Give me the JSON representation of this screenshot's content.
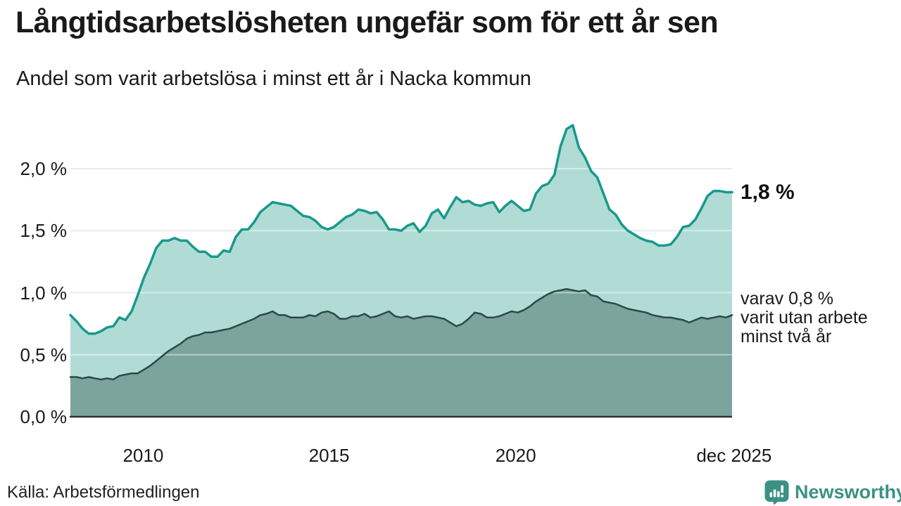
{
  "header": {
    "title": "Långtidsarbetslösheten ungefär som för ett år sen",
    "subtitle": "Andel som varit arbetslösa i minst ett år i Nacka kommun"
  },
  "annotations": {
    "latest_total": "1,8 %",
    "secondary": "varav 0,8 %\nvarit utan arbete\nminst två år"
  },
  "footer": {
    "source": "Källa: Arbetsförmedlingen",
    "brand": "Newsworthy"
  },
  "colors": {
    "accent_teal": "#18998b",
    "upper_fill": "#b1dcd6",
    "lower_fill": "#7aa49c",
    "lower_line": "#2b4a45",
    "gridline": "#d9d9d9",
    "gridline_overlay": "rgba(255,255,255,0.45)",
    "axis_line": "#303030",
    "text": "#1a1a1a",
    "brand_teal": "#3b9186"
  },
  "chart_data": {
    "type": "area",
    "title": "Långtidsarbetslösheten ungefär som för ett år sen",
    "subtitle": "Andel som varit arbetslösa i minst ett år i Nacka kommun",
    "xlabel": "",
    "ylabel": "",
    "grid": true,
    "legend_position": "right-edge-annotations",
    "x_range": [
      "2008",
      "dec 2025"
    ],
    "ylim": [
      0,
      2.4
    ],
    "y_ticks": {
      "labels": [
        "0,0 %",
        "0,5 %",
        "1,0 %",
        "1,5 %",
        "2,0 %"
      ],
      "values": [
        0,
        0.5,
        1.0,
        1.5,
        2.0
      ]
    },
    "x_ticks": {
      "labels": [
        "2010",
        "2015",
        "2020",
        "dec 2025"
      ],
      "fracs": [
        0.11,
        0.391,
        0.673,
        1.003
      ]
    },
    "series": [
      {
        "name": "Andel som varit arbetslösa i minst ett år",
        "end_label": "1,8 %",
        "end_value": 1.8,
        "values": [
          0.82,
          0.77,
          0.71,
          0.67,
          0.67,
          0.69,
          0.72,
          0.73,
          0.8,
          0.78,
          0.85,
          0.98,
          1.12,
          1.23,
          1.36,
          1.42,
          1.42,
          1.44,
          1.42,
          1.42,
          1.37,
          1.33,
          1.33,
          1.29,
          1.29,
          1.34,
          1.33,
          1.45,
          1.51,
          1.51,
          1.57,
          1.65,
          1.69,
          1.73,
          1.72,
          1.71,
          1.7,
          1.66,
          1.62,
          1.61,
          1.58,
          1.53,
          1.51,
          1.53,
          1.57,
          1.61,
          1.63,
          1.67,
          1.66,
          1.64,
          1.65,
          1.59,
          1.51,
          1.51,
          1.5,
          1.54,
          1.56,
          1.49,
          1.54,
          1.64,
          1.67,
          1.6,
          1.69,
          1.77,
          1.73,
          1.74,
          1.71,
          1.7,
          1.72,
          1.73,
          1.65,
          1.7,
          1.74,
          1.7,
          1.66,
          1.67,
          1.8,
          1.86,
          1.88,
          1.95,
          2.18,
          2.32,
          2.35,
          2.17,
          2.09,
          1.98,
          1.93,
          1.8,
          1.67,
          1.63,
          1.55,
          1.5,
          1.47,
          1.44,
          1.42,
          1.41,
          1.38,
          1.38,
          1.39,
          1.45,
          1.53,
          1.54,
          1.59,
          1.68,
          1.78,
          1.82,
          1.82,
          1.81,
          1.81
        ]
      },
      {
        "name": "varav varit utan arbete minst två år",
        "end_label": "0,8 %",
        "end_value": 0.8,
        "values": [
          0.32,
          0.32,
          0.31,
          0.32,
          0.31,
          0.3,
          0.31,
          0.3,
          0.33,
          0.34,
          0.35,
          0.35,
          0.38,
          0.41,
          0.45,
          0.49,
          0.53,
          0.56,
          0.59,
          0.63,
          0.65,
          0.66,
          0.68,
          0.68,
          0.69,
          0.7,
          0.71,
          0.73,
          0.75,
          0.77,
          0.79,
          0.82,
          0.83,
          0.85,
          0.82,
          0.82,
          0.8,
          0.8,
          0.8,
          0.82,
          0.81,
          0.84,
          0.85,
          0.83,
          0.79,
          0.79,
          0.81,
          0.81,
          0.83,
          0.8,
          0.81,
          0.83,
          0.85,
          0.81,
          0.8,
          0.81,
          0.79,
          0.8,
          0.81,
          0.81,
          0.8,
          0.79,
          0.76,
          0.73,
          0.75,
          0.79,
          0.84,
          0.83,
          0.8,
          0.8,
          0.81,
          0.83,
          0.85,
          0.84,
          0.86,
          0.89,
          0.93,
          0.96,
          0.99,
          1.01,
          1.02,
          1.03,
          1.02,
          1.01,
          1.02,
          0.98,
          0.97,
          0.93,
          0.92,
          0.91,
          0.89,
          0.87,
          0.86,
          0.85,
          0.84,
          0.82,
          0.81,
          0.8,
          0.8,
          0.79,
          0.78,
          0.76,
          0.78,
          0.8,
          0.79,
          0.8,
          0.81,
          0.8,
          0.82
        ]
      }
    ]
  }
}
